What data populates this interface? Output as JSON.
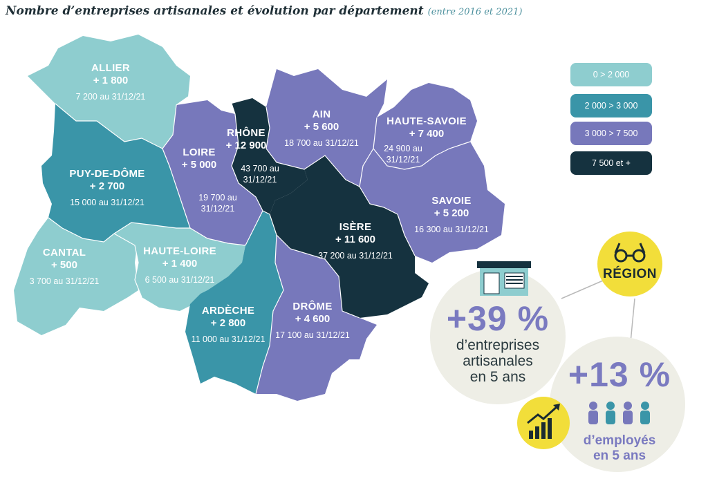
{
  "title": "Nombre d’entreprises artisanales et évolution par département",
  "subtitle": "(entre 2016 et 2021)",
  "colors": {
    "class1": "#8ecdcf",
    "class2": "#3a95a8",
    "class3": "#7778bb",
    "class4": "#15323f",
    "circle_bg": "#eeeee6",
    "yellow": "#f2de3a"
  },
  "legend": [
    {
      "label": "0 > 2 000",
      "color": "#8ecdcf"
    },
    {
      "label": "2 000 > 3 000",
      "color": "#3a95a8"
    },
    {
      "label": "3 000 > 7 500",
      "color": "#7778bb"
    },
    {
      "label": "7 500 et +",
      "color": "#15323f"
    }
  ],
  "departments": [
    {
      "name": "ALLIER",
      "change": "+ 1 800",
      "total": "7 200 au 31/12/21"
    },
    {
      "name": "PUY-DE-DÔME",
      "change": "+ 2 700",
      "total": "15 000 au 31/12/21"
    },
    {
      "name": "CANTAL",
      "change": "+ 500",
      "total": "3 700 au 31/12/21"
    },
    {
      "name": "HAUTE-LOIRE",
      "change": "+ 1 400",
      "total": "6 500 au 31/12/21"
    },
    {
      "name": "LOIRE",
      "change": "+ 5 000",
      "total": "19 700 au 31/12/21"
    },
    {
      "name": "RHÔNE",
      "change": "+ 12 900",
      "total": "43 700 au 31/12/21"
    },
    {
      "name": "AIN",
      "change": "+ 5 600",
      "total": "18 700 au 31/12/21"
    },
    {
      "name": "HAUTE-SAVOIE",
      "change": "+ 7 400",
      "total": "24 900 au 31/12/21"
    },
    {
      "name": "SAVOIE",
      "change": "+ 5 200",
      "total": "16 300 au 31/12/21"
    },
    {
      "name": "ISÈRE",
      "change": "+ 11 600",
      "total": "37 200 au 31/12/21"
    },
    {
      "name": "ARDÈCHE",
      "change": "+ 2 800",
      "total": "11 000 au 31/12/21"
    },
    {
      "name": "DRÔME",
      "change": "+ 4 600",
      "total": "17 100 au 31/12/21"
    }
  ],
  "region": {
    "label": "RÉGION",
    "stat1": {
      "value": "+39 %",
      "desc": [
        "d’entreprises",
        "artisanales",
        "en 5 ans"
      ]
    },
    "stat2": {
      "value": "+13 %",
      "desc": [
        "d’employés",
        "en 5 ans"
      ]
    }
  },
  "icons": [
    "binoculars-icon",
    "shop-icon",
    "growth-chart-icon",
    "people-icon"
  ]
}
